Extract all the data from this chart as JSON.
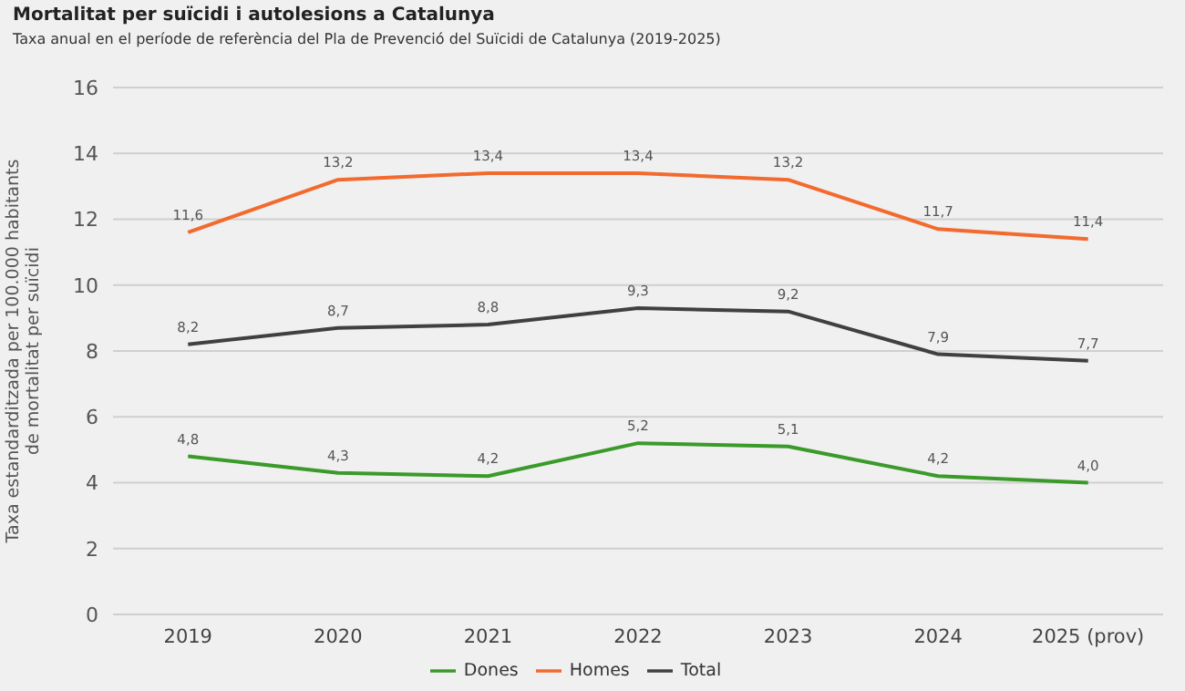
{
  "chart_data": {
    "type": "line",
    "title": "Mortalitat per suïcidi i autolesions a Catalunya",
    "subtitle": "Taxa anual en el període de referència del Pla de Prevenció del Suïcidi de Catalunya (2019-2025)",
    "ylabel": "Taxa estandarditzada per 100.000 habitants de mortalitat per suïcidi",
    "categories": [
      "2019",
      "2020",
      "2021",
      "2022",
      "2023",
      "2024",
      "2025 (prov)"
    ],
    "series": [
      {
        "name": "Dones",
        "color": "#3a9a2a",
        "values": [
          4.8,
          4.3,
          4.2,
          5.2,
          5.1,
          4.2,
          4.0
        ],
        "value_labels": [
          "4,8",
          "4,3",
          "4,2",
          "5,2",
          "5,1",
          "4,2",
          "4,0"
        ]
      },
      {
        "name": "Homes",
        "color": "#f26a2e",
        "values": [
          11.6,
          13.2,
          13.4,
          13.4,
          13.2,
          11.7,
          11.4
        ],
        "value_labels": [
          "11,6",
          "13,2",
          "13,4",
          "13,4",
          "13,2",
          "11,7",
          "11,4"
        ]
      },
      {
        "name": "Total",
        "color": "#404040",
        "values": [
          8.2,
          8.7,
          8.8,
          9.3,
          9.2,
          7.9,
          7.7
        ],
        "value_labels": [
          "8,2",
          "8,7",
          "8,8",
          "9,3",
          "9,2",
          "7,9",
          "7,7"
        ]
      }
    ],
    "ylim": [
      0,
      16
    ],
    "yticks": [
      0,
      2,
      4,
      6,
      8,
      10,
      12,
      14,
      16
    ],
    "grid": "y",
    "legend": "bottom"
  }
}
